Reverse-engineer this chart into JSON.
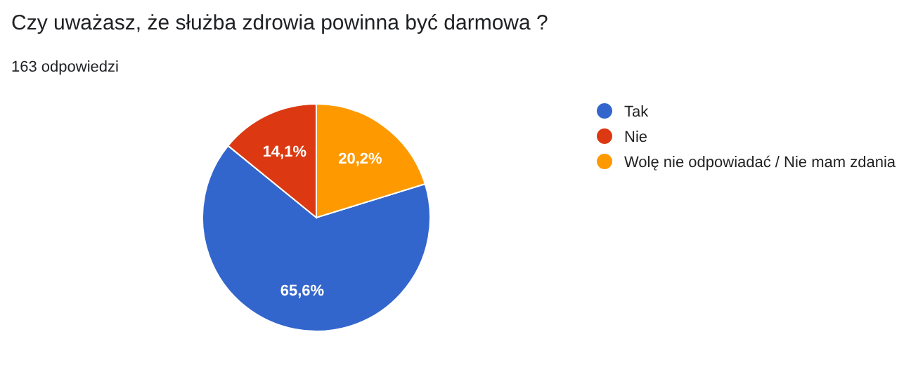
{
  "chart_data": {
    "type": "pie",
    "title": "Czy uważasz, że służba zdrowia powinna być darmowa ?",
    "subtitle": "163 odpowiedzi",
    "categories": [
      "Tak",
      "Nie",
      "Wolę nie odpowiadać / Nie mam zdania"
    ],
    "values": [
      65.6,
      14.1,
      20.2
    ],
    "colors": [
      "#3366cc",
      "#dc3912",
      "#ff9900"
    ],
    "value_labels": [
      "65,6%",
      "14,1%",
      "20,2%"
    ],
    "legend": "right"
  }
}
